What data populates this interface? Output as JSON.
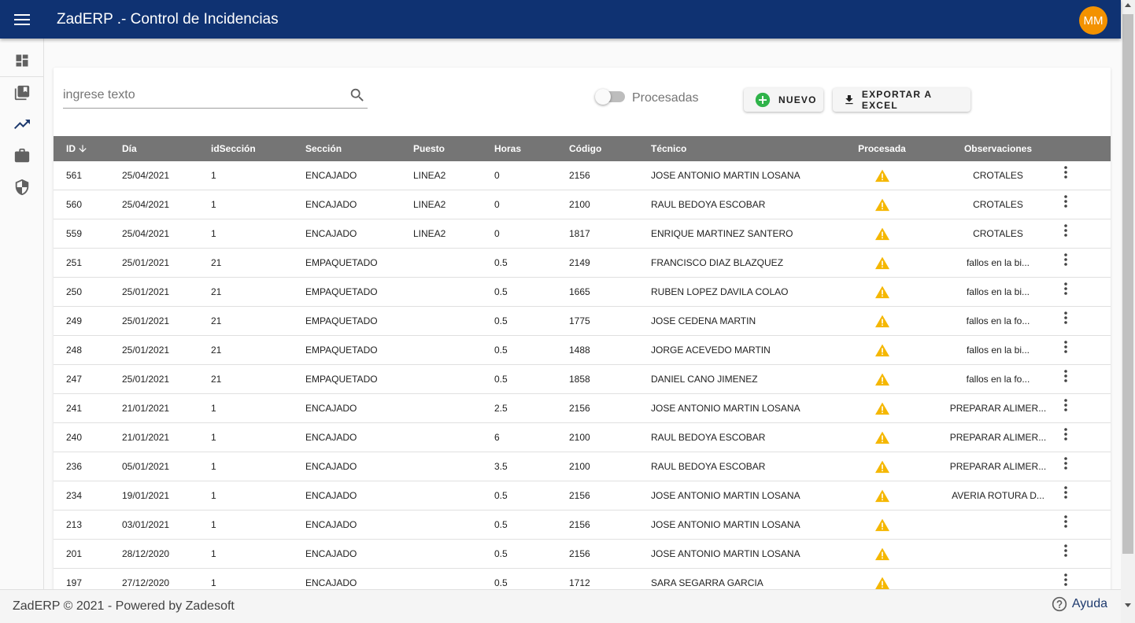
{
  "header": {
    "title": "ZadERP .- Control de Incidencias",
    "avatar_initials": "MM",
    "avatar_color": "#f39200",
    "bar_color": "#0f3272"
  },
  "sidebar": {
    "items": [
      {
        "icon": "dashboard-icon"
      },
      {
        "icon": "library-books-icon"
      },
      {
        "icon": "trending-up-icon"
      },
      {
        "icon": "briefcase-icon"
      },
      {
        "icon": "security-shield-icon"
      }
    ]
  },
  "toolbar": {
    "search_placeholder": "ingrese texto",
    "toggle_label": "Procesadas",
    "toggle_on": false,
    "nuevo_label": "NUEVO",
    "export_label": "EXPORTAR A EXCEL"
  },
  "table": {
    "headers": [
      "ID",
      "Día",
      "idSección",
      "Sección",
      "Puesto",
      "Horas",
      "Código",
      "Técnico",
      "Procesada",
      "Observaciones"
    ],
    "sort": "ID descending",
    "rows": [
      {
        "id": "561",
        "dia": "25/04/2021",
        "idseccion": "1",
        "seccion": "ENCAJADO",
        "puesto": "LINEA2",
        "horas": "0",
        "codigo": "2156",
        "tecnico": "JOSE ANTONIO MARTIN LOSANA",
        "observaciones": "CROTALES"
      },
      {
        "id": "560",
        "dia": "25/04/2021",
        "idseccion": "1",
        "seccion": "ENCAJADO",
        "puesto": "LINEA2",
        "horas": "0",
        "codigo": "2100",
        "tecnico": "RAUL BEDOYA ESCOBAR",
        "observaciones": "CROTALES"
      },
      {
        "id": "559",
        "dia": "25/04/2021",
        "idseccion": "1",
        "seccion": "ENCAJADO",
        "puesto": "LINEA2",
        "horas": "0",
        "codigo": "1817",
        "tecnico": "ENRIQUE MARTINEZ SANTERO",
        "observaciones": "CROTALES"
      },
      {
        "id": "251",
        "dia": "25/01/2021",
        "idseccion": "21",
        "seccion": "EMPAQUETADO",
        "puesto": "",
        "horas": "0.5",
        "codigo": "2149",
        "tecnico": "FRANCISCO DIAZ BLAZQUEZ",
        "observaciones": "fallos en la bi..."
      },
      {
        "id": "250",
        "dia": "25/01/2021",
        "idseccion": "21",
        "seccion": "EMPAQUETADO",
        "puesto": "",
        "horas": "0.5",
        "codigo": "1665",
        "tecnico": "RUBEN LOPEZ DAVILA COLAO",
        "observaciones": "fallos en la bi..."
      },
      {
        "id": "249",
        "dia": "25/01/2021",
        "idseccion": "21",
        "seccion": "EMPAQUETADO",
        "puesto": "",
        "horas": "0.5",
        "codigo": "1775",
        "tecnico": "JOSE CEDENA MARTIN",
        "observaciones": "fallos en la fo..."
      },
      {
        "id": "248",
        "dia": "25/01/2021",
        "idseccion": "21",
        "seccion": "EMPAQUETADO",
        "puesto": "",
        "horas": "0.5",
        "codigo": "1488",
        "tecnico": "JORGE ACEVEDO MARTIN",
        "observaciones": "fallos en la bi..."
      },
      {
        "id": "247",
        "dia": "25/01/2021",
        "idseccion": "21",
        "seccion": "EMPAQUETADO",
        "puesto": "",
        "horas": "0.5",
        "codigo": "1858",
        "tecnico": "DANIEL CANO JIMENEZ",
        "observaciones": "fallos en la fo..."
      },
      {
        "id": "241",
        "dia": "21/01/2021",
        "idseccion": "1",
        "seccion": "ENCAJADO",
        "puesto": "",
        "horas": "2.5",
        "codigo": "2156",
        "tecnico": "JOSE ANTONIO MARTIN LOSANA",
        "observaciones": "PREPARAR ALIMER..."
      },
      {
        "id": "240",
        "dia": "21/01/2021",
        "idseccion": "1",
        "seccion": "ENCAJADO",
        "puesto": "",
        "horas": "6",
        "codigo": "2100",
        "tecnico": "RAUL BEDOYA ESCOBAR",
        "observaciones": "PREPARAR ALIMER..."
      },
      {
        "id": "236",
        "dia": "05/01/2021",
        "idseccion": "1",
        "seccion": "ENCAJADO",
        "puesto": "",
        "horas": "3.5",
        "codigo": "2100",
        "tecnico": "RAUL BEDOYA ESCOBAR",
        "observaciones": "PREPARAR ALIMER..."
      },
      {
        "id": "234",
        "dia": "19/01/2021",
        "idseccion": "1",
        "seccion": "ENCAJADO",
        "puesto": "",
        "horas": "0.5",
        "codigo": "2156",
        "tecnico": "JOSE ANTONIO MARTIN LOSANA",
        "observaciones": "AVERIA ROTURA D..."
      },
      {
        "id": "213",
        "dia": "03/01/2021",
        "idseccion": "1",
        "seccion": "ENCAJADO",
        "puesto": "",
        "horas": "0.5",
        "codigo": "2156",
        "tecnico": "JOSE ANTONIO MARTIN LOSANA",
        "observaciones": ""
      },
      {
        "id": "201",
        "dia": "28/12/2020",
        "idseccion": "1",
        "seccion": "ENCAJADO",
        "puesto": "",
        "horas": "0.5",
        "codigo": "2156",
        "tecnico": "JOSE ANTONIO MARTIN LOSANA",
        "observaciones": ""
      },
      {
        "id": "197",
        "dia": "27/12/2020",
        "idseccion": "1",
        "seccion": "ENCAJADO",
        "puesto": "",
        "horas": "0.5",
        "codigo": "1712",
        "tecnico": "SARA SEGARRA GARCIA",
        "observaciones": ""
      }
    ],
    "procesada_icon": "warning-icon",
    "procesada_color": "#f5b700"
  },
  "footer": {
    "text": "ZadERP © 2021 - Powered by Zadesoft",
    "help_label": "Ayuda"
  }
}
